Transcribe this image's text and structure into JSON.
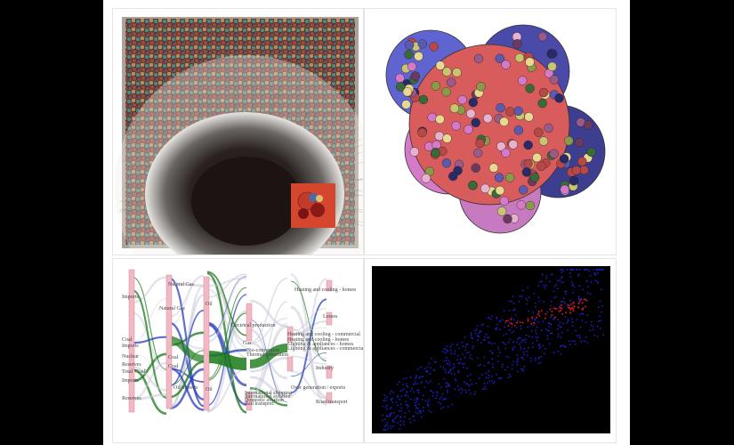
{
  "panels": [
    {
      "id": "network-photo",
      "kind": "photo"
    },
    {
      "id": "bubble-sets",
      "kind": "circle-packing"
    },
    {
      "id": "energy-sankey",
      "kind": "sankey"
    },
    {
      "id": "scatter-points",
      "kind": "scatter"
    }
  ],
  "sankey": {
    "left_labels": [
      "Imports",
      "Natural Gas",
      "Coal",
      "Imports",
      "Nuclear",
      "Reserves",
      "Total 'Coal'",
      "Imports",
      "Reserves"
    ],
    "mid_labels": [
      "Natural Gas",
      "Coal",
      "Oil",
      "Electrical production",
      "Coal",
      "Oil imports",
      "Oil"
    ],
    "right_labels": [
      "Heating and cooling - homes",
      "Losses",
      "Heating and cooling - commercial",
      "Heating and cooling - homes",
      "Lighting & appliances - homes",
      "Lighting & appliances - commercial",
      "Industry",
      "Road transport",
      "Over generation / exports",
      "International shipping",
      "International aviation",
      "Domestic aviation",
      "Rail transport",
      "Bio-conversion",
      "Thermal generation",
      "Gas"
    ]
  },
  "colors": {
    "background": "#000000",
    "bubble_red": "#d95c5c",
    "bubble_blue": "#5a5ec8",
    "bubble_pink": "#d98ac0",
    "sankey_green": "#1a7a1a",
    "sankey_blue": "#2a3fb8",
    "node_pink": "#f4b8c4",
    "scatter_blue": "#1a22c8",
    "scatter_red": "#d81818"
  }
}
